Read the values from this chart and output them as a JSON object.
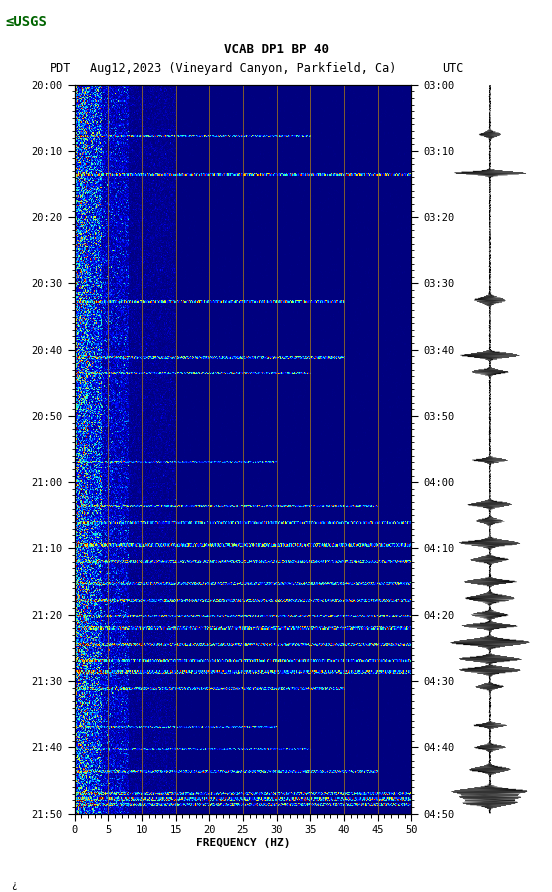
{
  "title_line1": "VCAB DP1 BP 40",
  "title_line2_left": "PDT",
  "title_line2_mid": "Aug12,2023 (Vineyard Canyon, Parkfield, Ca)",
  "title_line2_right": "UTC",
  "xlabel": "FREQUENCY (HZ)",
  "freq_min": 0,
  "freq_max": 50,
  "pdt_ticks": [
    "20:00",
    "20:10",
    "20:20",
    "20:30",
    "20:40",
    "20:50",
    "21:00",
    "21:10",
    "21:20",
    "21:30",
    "21:40",
    "21:50"
  ],
  "utc_ticks": [
    "03:00",
    "03:10",
    "03:20",
    "03:30",
    "03:40",
    "03:50",
    "04:00",
    "04:10",
    "04:20",
    "04:30",
    "04:40",
    "04:50"
  ],
  "freq_ticks": [
    0,
    5,
    10,
    15,
    20,
    25,
    30,
    35,
    40,
    45,
    50
  ],
  "vertical_grid_freqs": [
    5,
    10,
    15,
    20,
    25,
    30,
    35,
    40,
    45
  ],
  "fig_bg": "#ffffff",
  "colormap": "jet",
  "n_time": 660,
  "n_freq": 500,
  "seed": 42,
  "usgs_color": "#006400"
}
